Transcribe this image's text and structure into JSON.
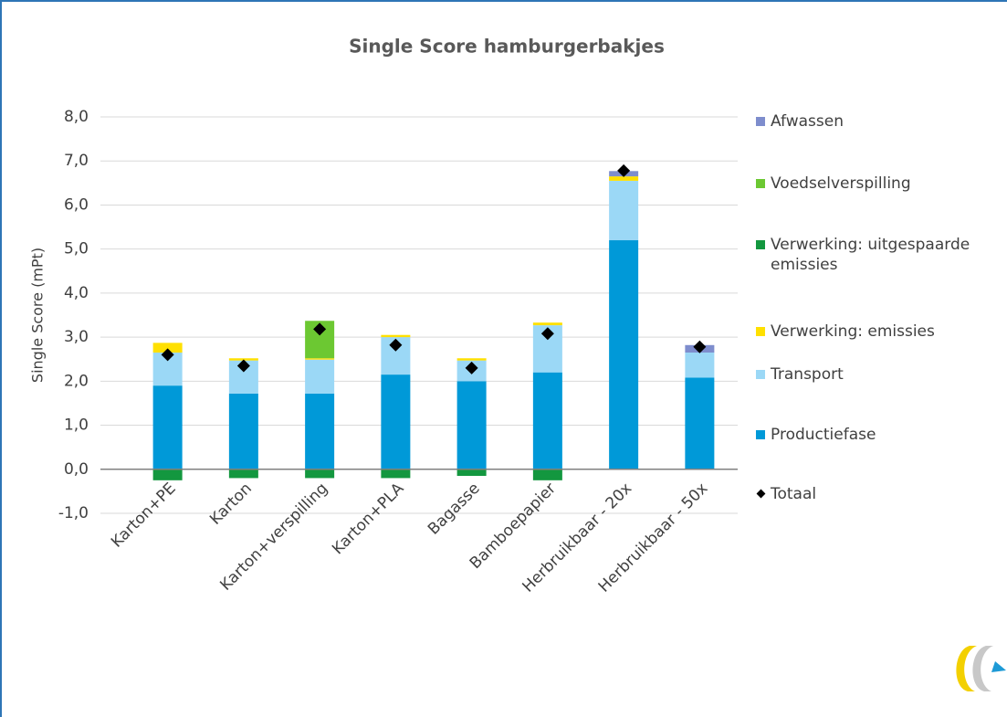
{
  "chart_data": {
    "type": "bar",
    "stacked": true,
    "title": "Single Score hamburgerbakjes",
    "y_axis_label": "Single Score (mPt)",
    "categories": [
      "Karton+PE",
      "Karton",
      "Karton+verspilling",
      "Karton+PLA",
      "Bagasse",
      "Bamboepapier",
      "Herbruikbaar - 20x",
      "Herbruikbaar - 50x"
    ],
    "series": [
      {
        "name": "Productiefase",
        "color": "#0099d8",
        "values": [
          1.9,
          1.72,
          1.72,
          2.15,
          2.0,
          2.2,
          5.2,
          2.08
        ]
      },
      {
        "name": "Transport",
        "color": "#9bd8f6",
        "values": [
          0.75,
          0.75,
          0.77,
          0.85,
          0.47,
          1.07,
          1.35,
          0.57
        ]
      },
      {
        "name": "Verwerking: emissies",
        "color": "#ffe000",
        "values": [
          0.22,
          0.05,
          0.03,
          0.05,
          0.05,
          0.06,
          0.1,
          0.0
        ]
      },
      {
        "name": "Verwerking: uitgespaarde emissies",
        "color": "#13973f",
        "values": [
          -0.25,
          -0.2,
          -0.2,
          -0.2,
          -0.15,
          -0.25,
          0.0,
          0.0
        ]
      },
      {
        "name": "Voedselverspilling",
        "color": "#6cc832",
        "values": [
          0.0,
          0.0,
          0.85,
          0.0,
          0.0,
          0.0,
          0.0,
          0.0
        ]
      },
      {
        "name": "Afwassen",
        "color": "#7e8dcd",
        "values": [
          0.0,
          0.0,
          0.0,
          0.0,
          0.0,
          0.0,
          0.12,
          0.17
        ]
      },
      {
        "name": "Totaal",
        "type": "scatter",
        "color": "#000000",
        "values": [
          2.6,
          2.35,
          3.18,
          2.82,
          2.3,
          3.08,
          6.78,
          2.78
        ]
      }
    ],
    "legend_order": [
      5,
      4,
      3,
      2,
      1,
      0,
      6
    ],
    "ylim": [
      -1,
      8
    ],
    "yticks": [
      {
        "value": -1,
        "label": "-1,0"
      },
      {
        "value": 0,
        "label": "0,0"
      },
      {
        "value": 1,
        "label": "1,0"
      },
      {
        "value": 2,
        "label": "2,0"
      },
      {
        "value": 3,
        "label": "3,0"
      },
      {
        "value": 4,
        "label": "4,0"
      },
      {
        "value": 5,
        "label": "5,0"
      },
      {
        "value": 6,
        "label": "6,0"
      },
      {
        "value": 7,
        "label": "7,0"
      },
      {
        "value": 8,
        "label": "8,0"
      }
    ],
    "grid": true
  }
}
